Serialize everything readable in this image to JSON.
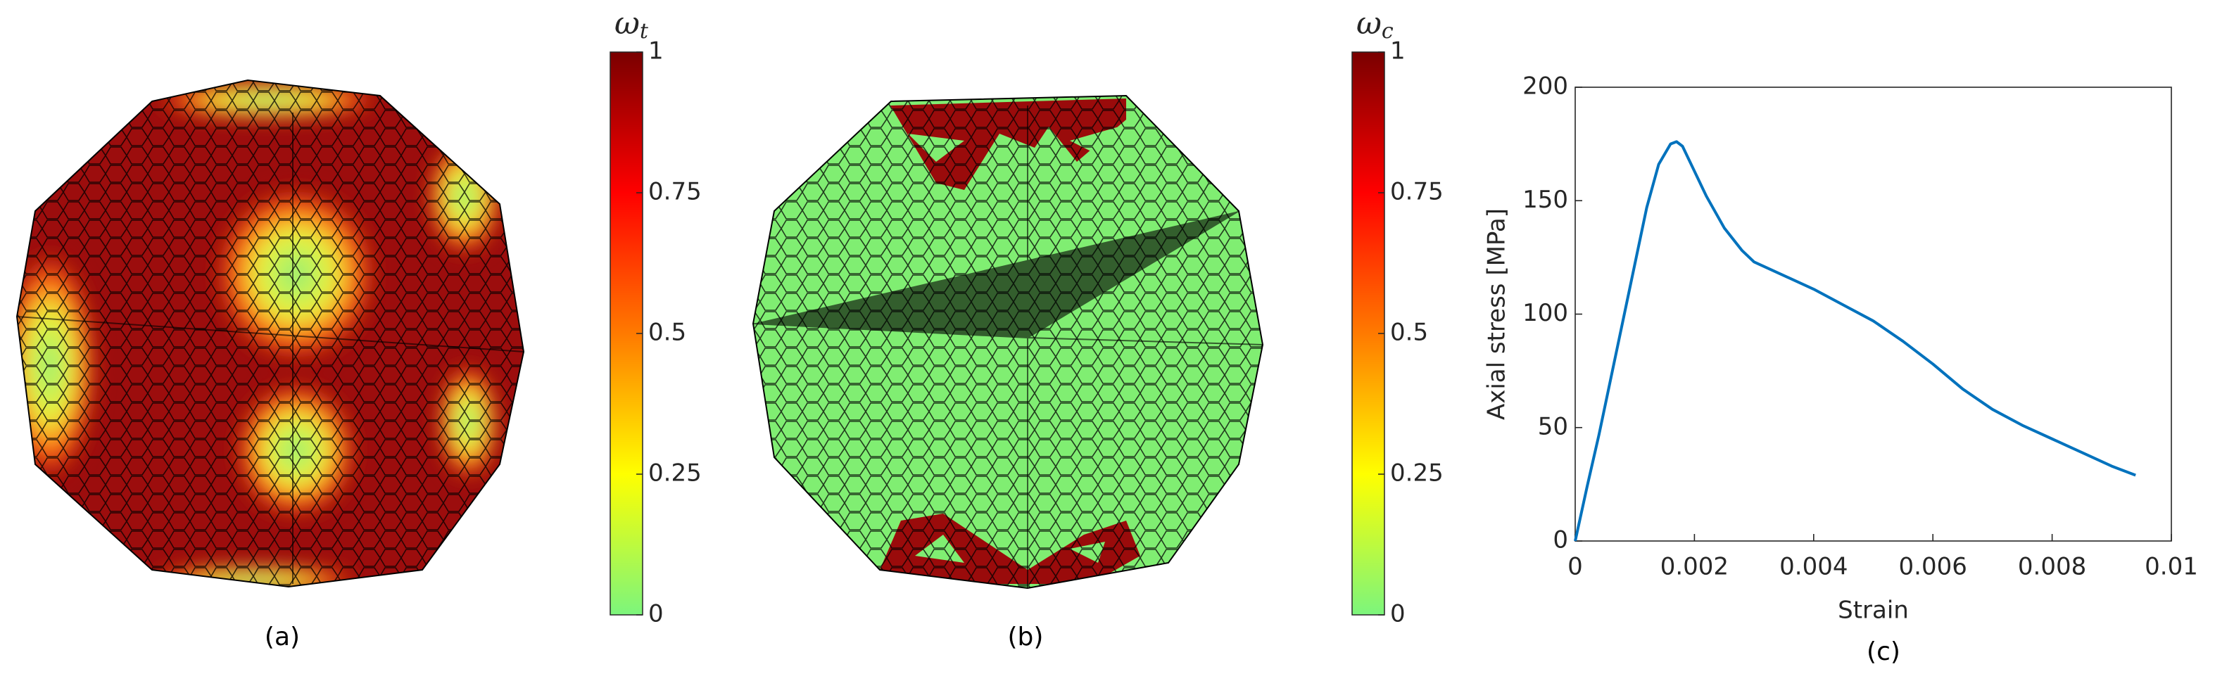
{
  "chart_data": [
    {
      "type": "mesh",
      "colorbar_label": {
        "symbol": "ω",
        "subscript": "t"
      },
      "caption": "(a)",
      "clim": [
        0,
        1
      ],
      "cticks": [
        0,
        0.25,
        0.5,
        0.75,
        1
      ],
      "colormap": [
        "#7cf57c",
        "#ffff00",
        "#ff7a00",
        "#ff0000",
        "#7a0000"
      ]
    },
    {
      "type": "mesh",
      "colorbar_label": {
        "symbol": "ω",
        "subscript": "c"
      },
      "caption": "(b)",
      "clim": [
        0,
        1
      ],
      "cticks": [
        0,
        0.25,
        0.5,
        0.75,
        1
      ],
      "colormap": [
        "#7cf57c",
        "#ffff00",
        "#ff7a00",
        "#ff0000",
        "#7a0000"
      ]
    },
    {
      "type": "line",
      "caption": "(c)",
      "xlabel": "Strain",
      "ylabel": "Axial stress [MPa]",
      "xlim": [
        0,
        0.01
      ],
      "xticks": [
        0,
        0.002,
        0.004,
        0.006,
        0.008,
        0.01
      ],
      "ylim": [
        0,
        200
      ],
      "yticks": [
        0,
        50,
        100,
        150,
        200
      ],
      "x": [
        0,
        0.0002,
        0.0004,
        0.0006,
        0.0008,
        0.001,
        0.0012,
        0.0014,
        0.0016,
        0.0017,
        0.0018,
        0.002,
        0.0022,
        0.0025,
        0.0028,
        0.003,
        0.0035,
        0.004,
        0.0045,
        0.005,
        0.0055,
        0.006,
        0.0065,
        0.007,
        0.0075,
        0.008,
        0.0085,
        0.009,
        0.0094
      ],
      "series": [
        {
          "color": "#0072bd",
          "values": [
            0,
            24,
            47,
            72,
            97,
            122,
            147,
            166,
            175,
            176,
            174,
            163,
            152,
            138,
            128,
            123,
            117,
            111,
            104,
            97,
            88,
            78,
            67,
            58,
            51,
            45,
            39,
            33,
            29
          ]
        }
      ]
    }
  ]
}
